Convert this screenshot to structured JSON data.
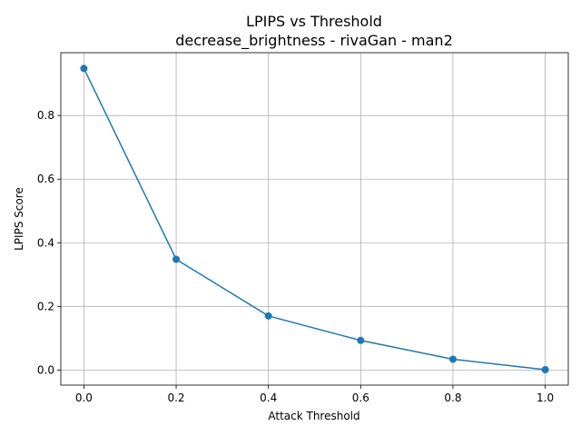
{
  "chart_data": {
    "type": "line",
    "title": "LPIPS vs Threshold",
    "subtitle": "decrease_brightness - rivaGan - man2",
    "xlabel": "Attack Threshold",
    "ylabel": "LPIPS Score",
    "xlim": [
      -0.05,
      1.05
    ],
    "ylim": [
      -0.0475,
      0.9975
    ],
    "xticks": [
      "0.0",
      "0.2",
      "0.4",
      "0.6",
      "0.8",
      "1.0"
    ],
    "yticks": [
      "0.0",
      "0.2",
      "0.4",
      "0.6",
      "0.8"
    ],
    "grid": true,
    "series": [
      {
        "color": "#1f77b4",
        "marker": "circle",
        "x": [
          0.0,
          0.2,
          0.4,
          0.6,
          0.8,
          1.0
        ],
        "y": [
          0.948,
          0.348,
          0.17,
          0.093,
          0.034,
          0.001
        ]
      }
    ]
  }
}
